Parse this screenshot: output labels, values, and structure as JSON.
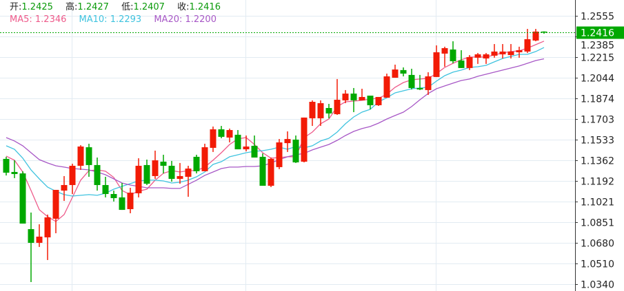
{
  "header": {
    "open_label": "开:",
    "open": "1.2425",
    "high_label": "高:",
    "high": "1.2427",
    "low_label": "低:",
    "low": "1.2407",
    "close_label": "收:",
    "close": "1.2416",
    "ma5": "MA5: 1.2346",
    "ma10": "MA10: 1.2293",
    "ma20": "MA20: 1.2200"
  },
  "colors": {
    "up": "#f21b06",
    "down": "#00a800",
    "ma5": "#ee5a8a",
    "ma10": "#3fc3df",
    "ma20": "#a757c6",
    "grid": "#e2ebf2",
    "last_price": "#00a800"
  },
  "chart_data": {
    "type": "candlestick",
    "title": "",
    "ylim": [
      1.034,
      1.2555
    ],
    "y_ticks": [
      "1.2555",
      "1.2385",
      "1.2215",
      "1.2044",
      "1.1874",
      "1.1703",
      "1.1533",
      "1.1362",
      "1.1192",
      "1.1021",
      "1.0851",
      "1.0680",
      "1.0510",
      "1.0340"
    ],
    "last_price_label": "1.2416",
    "last_price": 1.2416,
    "ohlc": [
      [
        1.1374,
        1.1391,
        1.1237,
        1.126
      ],
      [
        1.1266,
        1.1362,
        1.1215,
        1.1249
      ],
      [
        1.1254,
        1.1272,
        1.084,
        1.084
      ],
      [
        1.0794,
        1.0931,
        1.0357,
        1.0681
      ],
      [
        1.0681,
        1.0834,
        1.0647,
        1.0732
      ],
      [
        1.0726,
        1.0914,
        1.0539,
        1.0891
      ],
      [
        1.088,
        1.1118,
        1.076,
        1.1118
      ],
      [
        1.1112,
        1.1232,
        1.1027,
        1.1158
      ],
      [
        1.1158,
        1.1334,
        1.1084,
        1.1317
      ],
      [
        1.1317,
        1.1487,
        1.1283,
        1.1476
      ],
      [
        1.147,
        1.1499,
        1.1226,
        1.1323
      ],
      [
        1.1323,
        1.1385,
        1.1112,
        1.1158
      ],
      [
        1.1158,
        1.1226,
        1.1056,
        1.1084
      ],
      [
        1.1084,
        1.1112,
        1.1022,
        1.105
      ],
      [
        1.1056,
        1.1175,
        1.0953,
        1.0953
      ],
      [
        1.0959,
        1.1135,
        1.0925,
        1.1095
      ],
      [
        1.109,
        1.1379,
        1.1056,
        1.1317
      ],
      [
        1.1323,
        1.1368,
        1.1158,
        1.1169
      ],
      [
        1.1232,
        1.1442,
        1.1209,
        1.1362
      ],
      [
        1.1351,
        1.1408,
        1.1254,
        1.1317
      ],
      [
        1.1317,
        1.1357,
        1.1186,
        1.1209
      ],
      [
        1.1209,
        1.134,
        1.1169,
        1.1232
      ],
      [
        1.1226,
        1.1317,
        1.1061,
        1.1294
      ],
      [
        1.1391,
        1.1408,
        1.1254,
        1.1272
      ],
      [
        1.1272,
        1.1499,
        1.1272,
        1.147
      ],
      [
        1.1465,
        1.1641,
        1.1431,
        1.1618
      ],
      [
        1.1618,
        1.1646,
        1.1544,
        1.1556
      ],
      [
        1.155,
        1.1624,
        1.151,
        1.1612
      ],
      [
        1.1573,
        1.1612,
        1.1453,
        1.1453
      ],
      [
        1.1453,
        1.1567,
        1.1436,
        1.1476
      ],
      [
        1.1482,
        1.1567,
        1.1385,
        1.1385
      ],
      [
        1.1391,
        1.1419,
        1.1152,
        1.1152
      ],
      [
        1.1152,
        1.1385,
        1.1141,
        1.1374
      ],
      [
        1.1306,
        1.1538,
        1.1289,
        1.151
      ],
      [
        1.1504,
        1.1601,
        1.1431,
        1.1538
      ],
      [
        1.1533,
        1.1567,
        1.134,
        1.1345
      ],
      [
        1.1351,
        1.1715,
        1.1345,
        1.1715
      ],
      [
        1.1709,
        1.1857,
        1.1646,
        1.1845
      ],
      [
        1.1709,
        1.1857,
        1.1646,
        1.1834
      ],
      [
        1.1794,
        1.1828,
        1.1709,
        1.1749
      ],
      [
        1.1743,
        1.2033,
        1.1737,
        1.1862
      ],
      [
        1.1857,
        1.1942,
        1.1834,
        1.1913
      ],
      [
        1.1913,
        1.1959,
        1.176,
        1.1857
      ],
      [
        1.1857,
        1.1953,
        1.1857,
        1.1885
      ],
      [
        1.1896,
        1.1896,
        1.1783,
        1.1817
      ],
      [
        1.1817,
        1.1885,
        1.1811,
        1.1885
      ],
      [
        1.1879,
        1.2078,
        1.1879,
        1.2055
      ],
      [
        1.2044,
        1.2152,
        1.2044,
        1.2112
      ],
      [
        1.2107,
        1.2129,
        1.2055,
        1.2078
      ],
      [
        1.2067,
        1.2118,
        1.1947,
        1.1959
      ],
      [
        1.1959,
        1.2067,
        1.1942,
        1.1947
      ],
      [
        1.1942,
        1.2089,
        1.1902,
        1.2055
      ],
      [
        1.205,
        1.2311,
        1.205,
        1.2254
      ],
      [
        1.2243,
        1.23,
        1.2135,
        1.2288
      ],
      [
        1.2277,
        1.2345,
        1.2163,
        1.218
      ],
      [
        1.2186,
        1.2271,
        1.2124,
        1.2124
      ],
      [
        1.2124,
        1.2231,
        1.2107,
        1.2214
      ],
      [
        1.2209,
        1.2248,
        1.2158,
        1.2237
      ],
      [
        1.2203,
        1.2248,
        1.2158,
        1.2237
      ],
      [
        1.2226,
        1.2322,
        1.2209,
        1.226
      ],
      [
        1.2237,
        1.2322,
        1.2203,
        1.226
      ],
      [
        1.2231,
        1.2322,
        1.2203,
        1.226
      ],
      [
        1.2254,
        1.23,
        1.2209,
        1.2271
      ],
      [
        1.226,
        1.2447,
        1.2248,
        1.2362
      ],
      [
        1.2351,
        1.2447,
        1.2345,
        1.2425
      ],
      [
        1.2425,
        1.2427,
        1.2407,
        1.2416
      ]
    ],
    "series": [
      {
        "name": "MA5",
        "values": [
          1.1397,
          1.1363,
          1.1266,
          1.1113,
          1.0954,
          1.0897,
          1.0857,
          1.0914,
          1.1056,
          1.1198,
          1.1277,
          1.1283,
          1.1272,
          1.1221,
          1.1113,
          1.1079,
          1.1107,
          1.1124,
          1.1198,
          1.1255,
          1.1277,
          1.1266,
          1.1277,
          1.1277,
          1.1306,
          1.1363,
          1.1425,
          1.1493,
          1.1539,
          1.155,
          1.1493,
          1.1425,
          1.138,
          1.1385,
          1.1391,
          1.1391,
          1.155,
          1.1595,
          1.1664,
          1.1703,
          1.1806,
          1.1845,
          1.1851,
          1.1857,
          1.1868,
          1.1874,
          1.1908,
          1.1965,
          1.2004,
          1.2027,
          1.2033,
          1.2039,
          1.2078,
          1.2129,
          1.2163,
          1.2192,
          1.2215,
          1.2215,
          1.2215,
          1.2232,
          1.2249,
          1.226,
          1.2266,
          1.2288,
          1.2317,
          1.2346
        ]
      },
      {
        "name": "MA10",
        "values": [
          1.1482,
          1.1453,
          1.138,
          1.1283,
          1.1209,
          1.1141,
          1.1107,
          1.1079,
          1.1067,
          1.1073,
          1.1079,
          1.1073,
          1.109,
          1.1124,
          1.1147,
          1.117,
          1.1192,
          1.1198,
          1.1198,
          1.1192,
          1.1175,
          1.1181,
          1.1198,
          1.1226,
          1.1266,
          1.1328,
          1.1351,
          1.1391,
          1.1408,
          1.1425,
          1.1436,
          1.1442,
          1.1453,
          1.1471,
          1.1453,
          1.1476,
          1.1465,
          1.1482,
          1.1522,
          1.1544,
          1.1595,
          1.1664,
          1.172,
          1.176,
          1.1783,
          1.1845,
          1.1879,
          1.1919,
          1.1936,
          1.1953,
          1.1959,
          1.1965,
          1.2016,
          1.2061,
          1.209,
          1.2107,
          1.2129,
          1.2135,
          1.2146,
          1.2175,
          1.2203,
          1.222,
          1.2237,
          1.2237,
          1.226,
          1.2293
        ]
      },
      {
        "name": "MA20",
        "values": [
          1.155,
          1.1522,
          1.1482,
          1.1425,
          1.1368,
          1.134,
          1.1317,
          1.1306,
          1.1294,
          1.1289,
          1.1283,
          1.1266,
          1.1243,
          1.1209,
          1.1175,
          1.1158,
          1.1147,
          1.1135,
          1.1135,
          1.1135,
          1.113,
          1.113,
          1.1164,
          1.1198,
          1.1238,
          1.1266,
          1.1294,
          1.1306,
          1.1306,
          1.1311,
          1.1311,
          1.1317,
          1.134,
          1.1368,
          1.1391,
          1.1408,
          1.1419,
          1.1448,
          1.1471,
          1.1493,
          1.1527,
          1.1567,
          1.1601,
          1.1624,
          1.1641,
          1.1669,
          1.1703,
          1.1732,
          1.176,
          1.1806,
          1.1862,
          1.1914,
          1.1953,
          1.1976,
          1.1999,
          1.2021,
          1.2033,
          1.2056,
          1.2073,
          1.209,
          1.2107,
          1.2124,
          1.2141,
          1.2163,
          1.2186,
          1.22
        ]
      }
    ]
  }
}
